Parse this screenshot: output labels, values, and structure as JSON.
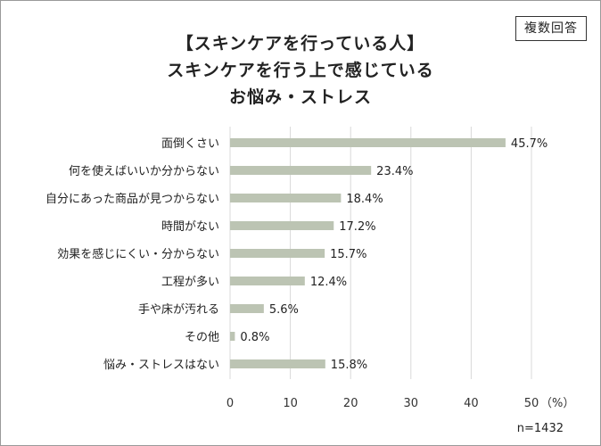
{
  "badge": "複数回答",
  "chart_data": {
    "type": "bar",
    "orientation": "horizontal",
    "title_lines": [
      "【スキンケアを行っている人】",
      "スキンケアを行う上で感じている",
      "お悩み・ストレス"
    ],
    "categories": [
      "面倒くさい",
      "何を使えばいいか分からない",
      "自分にあった商品が見つからない",
      "時間がない",
      "効果を感じにくい・分からない",
      "工程が多い",
      "手や床が汚れる",
      "その他",
      "悩み・ストレスはない"
    ],
    "values": [
      45.7,
      23.4,
      18.4,
      17.2,
      15.7,
      12.4,
      5.6,
      0.8,
      15.8
    ],
    "value_labels": [
      "45.7%",
      "23.4%",
      "18.4%",
      "17.2%",
      "15.7%",
      "12.4%",
      "5.6%",
      "0.8%",
      "15.8%"
    ],
    "xlim": [
      0,
      50
    ],
    "ticks": [
      "0",
      "10",
      "20",
      "30",
      "40",
      "50"
    ],
    "unit_label": "（%）",
    "sample_note": "n=1432",
    "bar_color": "#bcc4b3",
    "grid": true
  }
}
